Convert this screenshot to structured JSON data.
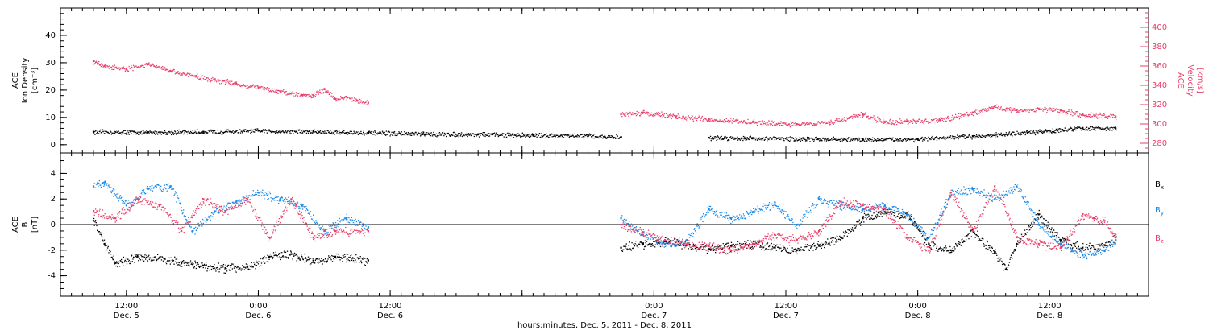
{
  "chart_data": [
    {
      "type": "scatter",
      "panel": "top",
      "ylabel_left": [
        "ACE",
        "Ion Density",
        "[cm⁻³]"
      ],
      "ylabel_right": [
        "ACE",
        "Velocity",
        "[km/s]"
      ],
      "ylim_left": [
        -3,
        50
      ],
      "ylim_right": [
        270,
        420
      ],
      "yticks_left": [
        0,
        10,
        20,
        30,
        40
      ],
      "yticks_right": [
        280,
        300,
        320,
        340,
        360,
        380,
        400
      ],
      "series": [
        {
          "role": "density",
          "color": "#000000",
          "axis": "left",
          "x": [
            0,
            5,
            10,
            15,
            20,
            25,
            30,
            35,
            40,
            45,
            48,
            56,
            60,
            65,
            70,
            75,
            80,
            85,
            90,
            93
          ],
          "y": [
            4.8,
            4.6,
            4.8,
            5.2,
            4.9,
            4.4,
            4.0,
            3.9,
            3.6,
            3.3,
            2.8,
            2.6,
            2.5,
            2.2,
            2.0,
            2.1,
            3.2,
            4.5,
            6.2,
            6.0
          ]
        },
        {
          "role": "velocity",
          "color": "#e8406a",
          "axis": "right",
          "x": [
            0,
            1,
            3,
            5,
            7,
            9,
            11,
            13,
            15,
            17,
            19,
            20,
            21,
            22,
            23,
            24,
            25,
            48,
            50,
            53,
            56,
            60,
            64,
            67,
            70,
            72,
            74,
            77,
            80,
            82,
            84,
            86,
            88,
            90,
            93
          ],
          "y": [
            365,
            360,
            357,
            362,
            355,
            350,
            346,
            342,
            338,
            334,
            330,
            330,
            336,
            326,
            328,
            324,
            322,
            310,
            312,
            308,
            305,
            302,
            300,
            302,
            310,
            302,
            303,
            304,
            312,
            318,
            314,
            316,
            314,
            310,
            308
          ]
        }
      ]
    },
    {
      "type": "scatter",
      "panel": "bottom",
      "ylabel": [
        "ACE",
        "B",
        "[nT]"
      ],
      "ylim": [
        -5.6,
        5.6
      ],
      "yticks": [
        -4,
        -2,
        0,
        2,
        4
      ],
      "legend": [
        {
          "label": "B",
          "sub": "x",
          "color": "#000000"
        },
        {
          "label": "B",
          "sub": "y",
          "color": "#1a88e6"
        },
        {
          "label": "B",
          "sub": "z",
          "color": "#e8406a"
        }
      ],
      "series": [
        {
          "name": "Bx",
          "color": "#000000",
          "x": [
            0,
            1,
            2,
            4,
            6,
            8,
            10,
            12,
            14,
            16,
            18,
            20,
            22,
            25,
            48,
            50,
            52,
            54,
            56,
            58,
            60,
            62,
            64,
            66,
            68,
            70,
            72,
            74,
            76,
            78,
            80,
            82,
            83,
            84,
            86,
            88,
            90,
            92,
            93
          ],
          "y": [
            0.3,
            -1.5,
            -3.0,
            -2.5,
            -2.6,
            -3.0,
            -3.2,
            -3.4,
            -3.3,
            -2.5,
            -2.3,
            -2.8,
            -2.5,
            -2.8,
            -1.8,
            -1.5,
            -1.3,
            -1.6,
            -1.9,
            -1.7,
            -1.5,
            -1.8,
            -2.0,
            -1.6,
            -1.0,
            0.5,
            1.0,
            0.8,
            -1.5,
            -2.0,
            -0.5,
            -2.2,
            -3.5,
            -1.5,
            0.8,
            -1.2,
            -1.8,
            -1.6,
            -1.0
          ]
        },
        {
          "name": "By",
          "color": "#1a88e6",
          "x": [
            0,
            1,
            3,
            5,
            7,
            9,
            11,
            13,
            15,
            17,
            19,
            21,
            23,
            25,
            48,
            50,
            52,
            54,
            56,
            58,
            60,
            62,
            64,
            66,
            68,
            70,
            72,
            74,
            76,
            78,
            80,
            82,
            84,
            86,
            88,
            90,
            92,
            93
          ],
          "y": [
            3.0,
            3.3,
            1.5,
            2.8,
            3.0,
            -0.5,
            1.0,
            1.8,
            2.5,
            2.0,
            1.5,
            -0.5,
            0.5,
            -0.2,
            0.5,
            -0.8,
            -1.5,
            -1.2,
            1.2,
            0.5,
            1.0,
            1.6,
            0.0,
            2.0,
            1.5,
            1.2,
            1.5,
            0.8,
            -1.0,
            2.5,
            2.8,
            2.0,
            3.0,
            0.0,
            -1.5,
            -2.4,
            -2.0,
            -1.2
          ]
        },
        {
          "name": "Bz",
          "color": "#e8406a",
          "x": [
            0,
            2,
            4,
            6,
            8,
            10,
            12,
            14,
            16,
            18,
            20,
            22,
            25,
            48,
            50,
            52,
            54,
            56,
            58,
            60,
            62,
            64,
            66,
            68,
            70,
            72,
            74,
            76,
            78,
            80,
            82,
            84,
            86,
            88,
            90,
            91,
            92,
            93
          ],
          "y": [
            1.0,
            0.5,
            2.0,
            1.5,
            -0.5,
            2.0,
            1.0,
            2.0,
            -1.0,
            2.0,
            -1.0,
            -0.5,
            -0.5,
            0.0,
            -0.6,
            -1.2,
            -1.5,
            -1.7,
            -2.0,
            -1.5,
            -0.8,
            -1.2,
            -0.5,
            1.8,
            1.5,
            1.2,
            -1.0,
            -2.0,
            2.5,
            -0.5,
            3.0,
            -1.0,
            -1.5,
            -1.8,
            0.8,
            0.5,
            0.3,
            -1.0
          ]
        }
      ]
    }
  ],
  "xaxis": {
    "xlim": [
      -3,
      96
    ],
    "title": "hours:minutes, Dec. 5, 2011 - Dec. 8, 2011",
    "ticks": [
      {
        "x": 3,
        "time": "12:00",
        "date": "Dec. 5"
      },
      {
        "x": 15,
        "time": "0:00",
        "date": "Dec. 6"
      },
      {
        "x": 27,
        "time": "12:00",
        "date": "Dec. 6"
      },
      {
        "x": 39,
        "time": "",
        "date": ""
      },
      {
        "x": 51,
        "time": "0:00",
        "date": "Dec. 7"
      },
      {
        "x": 63,
        "time": "12:00",
        "date": "Dec. 7"
      },
      {
        "x": 75,
        "time": "0:00",
        "date": "Dec. 8"
      },
      {
        "x": 87,
        "time": "12:00",
        "date": "Dec. 8"
      }
    ]
  }
}
